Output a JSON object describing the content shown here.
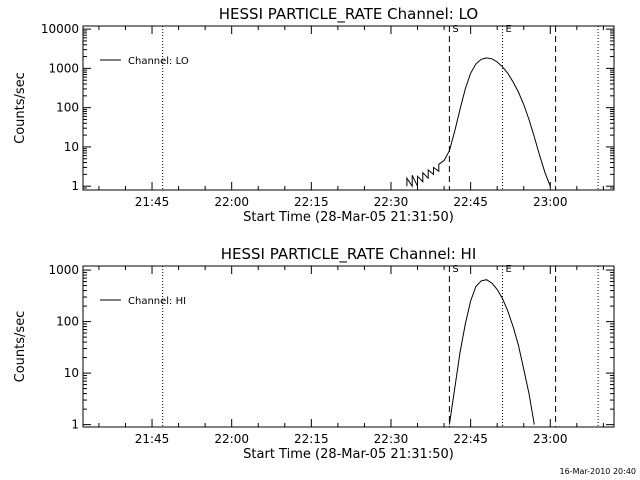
{
  "footer": {
    "timestamp": "16-Mar-2010 20:40"
  },
  "chart_data": [
    {
      "type": "line",
      "title": "HESSI PARTICLE_RATE Channel: LO",
      "xlabel": "Start Time (28-Mar-05 21:31:50)",
      "ylabel": "Counts/sec",
      "yscale": "log",
      "ylim": [
        0.8,
        12000
      ],
      "xlim": [
        "21:32",
        "23:12"
      ],
      "x_ticks": [
        "21:45",
        "22:00",
        "22:15",
        "22:30",
        "22:45",
        "23:00"
      ],
      "y_ticks": [
        "1",
        "10",
        "100",
        "1000",
        "10000"
      ],
      "legend": {
        "label": "Channel: LO",
        "placement": "top-left"
      },
      "markers": [
        {
          "time": "22:41",
          "style": "dashed",
          "label": "S"
        },
        {
          "time": "22:51",
          "style": "dotted",
          "label": "E"
        },
        {
          "time": "23:01",
          "style": "dashed",
          "label": ""
        },
        {
          "time": "21:47",
          "style": "dotted",
          "label": ""
        },
        {
          "time": "23:09",
          "style": "dotted",
          "label": ""
        }
      ],
      "series": [
        {
          "name": "Channel: LO",
          "points": [
            [
              "22:33",
              1
            ],
            [
              "22:33",
              1.6
            ],
            [
              "22:34",
              1
            ],
            [
              "22:34",
              1.9
            ],
            [
              "22:35",
              1
            ],
            [
              "22:35",
              1.8
            ],
            [
              "22:36",
              1.3
            ],
            [
              "22:36",
              2.2
            ],
            [
              "22:37",
              1.6
            ],
            [
              "22:37",
              2.6
            ],
            [
              "22:38",
              2.0
            ],
            [
              "22:38",
              3.0
            ],
            [
              "22:39",
              2.4
            ],
            [
              "22:39",
              3.6
            ],
            [
              "22:40",
              4.5
            ],
            [
              "22:41",
              8
            ],
            [
              "22:42",
              25
            ],
            [
              "22:43",
              90
            ],
            [
              "22:44",
              300
            ],
            [
              "22:45",
              750
            ],
            [
              "22:46",
              1300
            ],
            [
              "22:47",
              1700
            ],
            [
              "22:48",
              1850
            ],
            [
              "22:49",
              1750
            ],
            [
              "22:50",
              1450
            ],
            [
              "22:51",
              1100
            ],
            [
              "22:52",
              750
            ],
            [
              "22:53",
              450
            ],
            [
              "22:54",
              250
            ],
            [
              "22:55",
              120
            ],
            [
              "22:56",
              50
            ],
            [
              "22:57",
              18
            ],
            [
              "22:58",
              6
            ],
            [
              "22:59",
              2.2
            ],
            [
              "23:00",
              1
            ]
          ]
        }
      ]
    },
    {
      "type": "line",
      "title": "HESSI PARTICLE_RATE Channel: HI",
      "xlabel": "Start Time (28-Mar-05 21:31:50)",
      "ylabel": "Counts/sec",
      "yscale": "log",
      "ylim": [
        0.9,
        1200
      ],
      "xlim": [
        "21:32",
        "23:12"
      ],
      "x_ticks": [
        "21:45",
        "22:00",
        "22:15",
        "22:30",
        "22:45",
        "23:00"
      ],
      "y_ticks": [
        "1",
        "10",
        "100",
        "1000"
      ],
      "legend": {
        "label": "Channel: HI",
        "placement": "top-left"
      },
      "markers": [
        {
          "time": "22:41",
          "style": "dashed",
          "label": "S"
        },
        {
          "time": "22:51",
          "style": "dotted",
          "label": "E"
        },
        {
          "time": "23:01",
          "style": "dashed",
          "label": ""
        },
        {
          "time": "21:47",
          "style": "dotted",
          "label": ""
        },
        {
          "time": "23:09",
          "style": "dotted",
          "label": ""
        }
      ],
      "series": [
        {
          "name": "Channel: HI",
          "points": [
            [
              "22:41",
              1
            ],
            [
              "22:42",
              5
            ],
            [
              "22:43",
              25
            ],
            [
              "22:44",
              90
            ],
            [
              "22:45",
              250
            ],
            [
              "22:46",
              480
            ],
            [
              "22:47",
              620
            ],
            [
              "22:48",
              650
            ],
            [
              "22:49",
              560
            ],
            [
              "22:50",
              420
            ],
            [
              "22:51",
              280
            ],
            [
              "22:52",
              160
            ],
            [
              "22:53",
              80
            ],
            [
              "22:54",
              35
            ],
            [
              "22:55",
              12
            ],
            [
              "22:56",
              4
            ],
            [
              "22:57",
              1
            ]
          ]
        }
      ]
    }
  ]
}
